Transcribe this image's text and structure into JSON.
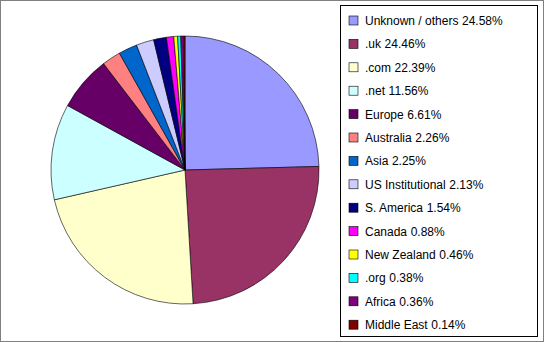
{
  "chart_data": {
    "type": "pie",
    "categories": [
      "Unknown / others",
      ".uk",
      ".com",
      ".net",
      "Europe",
      "Australia",
      "Asia",
      "US Institutional",
      "S. America",
      "Canada",
      "New Zealand",
      ".org",
      "Africa",
      "Middle East"
    ],
    "values": [
      24.58,
      24.46,
      22.39,
      11.56,
      6.61,
      2.26,
      2.25,
      2.13,
      1.54,
      0.88,
      0.46,
      0.38,
      0.36,
      0.14
    ],
    "value_labels": [
      "24.58%",
      "24.46%",
      "22.39%",
      "11.56%",
      "6.61%",
      "2.26%",
      "2.25%",
      "2.13%",
      "1.54%",
      "0.88%",
      "0.46%",
      "0.38%",
      "0.36%",
      "0.14%"
    ],
    "colors": [
      "#9999ff",
      "#993366",
      "#ffffcc",
      "#ccffff",
      "#660066",
      "#ff8080",
      "#0066cc",
      "#ccccff",
      "#000080",
      "#ff00ff",
      "#ffff00",
      "#00ffff",
      "#800080",
      "#800000"
    ],
    "legend": "right"
  }
}
